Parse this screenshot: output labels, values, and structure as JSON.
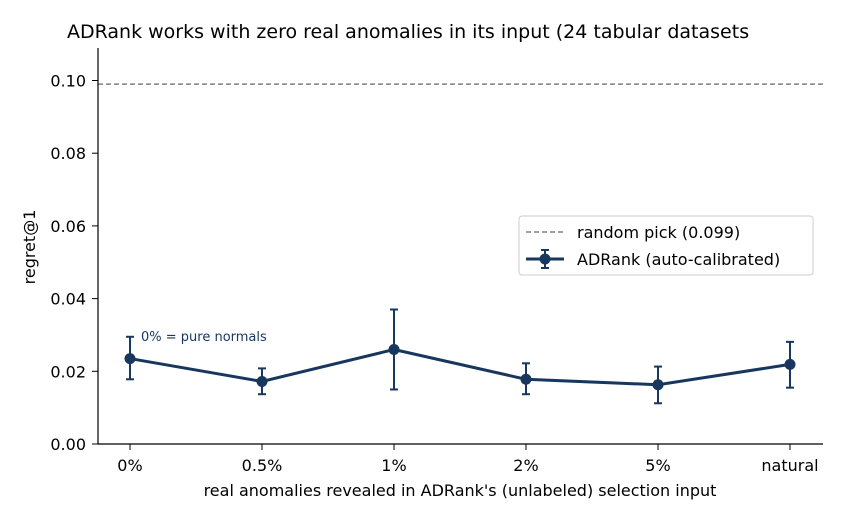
{
  "chart_data": {
    "type": "line",
    "title": "ADRank works with zero real anomalies in its input (24 tabular datasets",
    "xlabel": "real anomalies revealed in ADRank's (unlabeled) selection input",
    "ylabel": "regret@1",
    "categories": [
      "0%",
      "0.5%",
      "1%",
      "2%",
      "5%",
      "natural"
    ],
    "ylim": [
      0,
      0.108
    ],
    "yticks": [
      "0.00",
      "0.02",
      "0.04",
      "0.06",
      "0.08",
      "0.10"
    ],
    "series": [
      {
        "name": "ADRank (auto-calibrated)",
        "color": "#17375e",
        "values": [
          0.0235,
          0.0172,
          0.026,
          0.0178,
          0.0163,
          0.0219
        ],
        "err_low": [
          0.0178,
          0.0137,
          0.015,
          0.0137,
          0.0112,
          0.0155
        ],
        "err_high": [
          0.0295,
          0.0208,
          0.037,
          0.0222,
          0.0213,
          0.0281
        ]
      }
    ],
    "reference_line": {
      "label": "random pick (0.099)",
      "value": 0.099,
      "color": "#808080",
      "style": "dashed"
    },
    "annotation": "0% = pure normals",
    "legend_position": "center-right",
    "grid": false
  }
}
